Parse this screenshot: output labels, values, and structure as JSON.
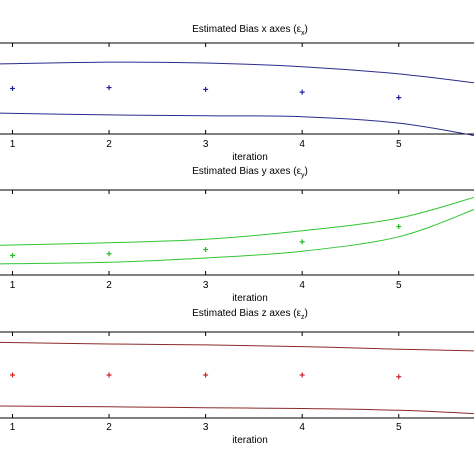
{
  "chart_data": [
    {
      "type": "line",
      "title": "Estimated Bias x axes (ε",
      "title_sub": "x",
      "title_close": ")",
      "xlabel": "iteration",
      "ylabel": "",
      "grid": false,
      "xlim": [
        0.85,
        5.8
      ],
      "ylim": [
        0,
        1
      ],
      "x_ticks": [
        1,
        2,
        3,
        4,
        5
      ],
      "colors": {
        "bounds": "#2b2b8c",
        "markers": "#1f1f9e"
      },
      "series": [
        {
          "style": "line",
          "x": [
            0.85,
            2,
            3,
            4,
            5,
            5.8
          ],
          "values": [
            0.77,
            0.79,
            0.78,
            0.74,
            0.66,
            0.56
          ]
        },
        {
          "style": "line",
          "x": [
            0.85,
            2,
            3,
            4,
            5,
            5.8
          ],
          "values": [
            0.23,
            0.21,
            0.2,
            0.19,
            0.12,
            -0.02
          ]
        },
        {
          "style": "markers",
          "x": [
            1,
            2,
            3,
            4,
            5
          ],
          "values": [
            0.5,
            0.51,
            0.49,
            0.46,
            0.4
          ]
        }
      ]
    },
    {
      "type": "line",
      "title": "Estimated Bias y axes (ε",
      "title_sub": "y",
      "title_close": ")",
      "xlabel": "iteration",
      "ylabel": "",
      "grid": false,
      "xlim": [
        0.85,
        5.8
      ],
      "ylim": [
        0,
        1
      ],
      "x_ticks": [
        1,
        2,
        3,
        4,
        5
      ],
      "colors": {
        "bounds": "#33c433",
        "markers": "#22bb22"
      },
      "series": [
        {
          "style": "line",
          "x": [
            0.85,
            2,
            3,
            4,
            5,
            5.8
          ],
          "values": [
            0.35,
            0.38,
            0.42,
            0.52,
            0.67,
            0.92
          ]
        },
        {
          "style": "line",
          "x": [
            0.85,
            2,
            3,
            4,
            5,
            5.8
          ],
          "values": [
            0.13,
            0.15,
            0.2,
            0.28,
            0.45,
            0.78
          ]
        },
        {
          "style": "markers",
          "x": [
            1,
            2,
            3,
            4,
            5
          ],
          "values": [
            0.23,
            0.25,
            0.3,
            0.39,
            0.57
          ]
        }
      ]
    },
    {
      "type": "line",
      "title": "Estimated Bias z axes (ε",
      "title_sub": "z",
      "title_close": ")",
      "xlabel": "iteration",
      "ylabel": "",
      "grid": false,
      "xlim": [
        0.85,
        5.8
      ],
      "ylim": [
        0,
        1
      ],
      "x_ticks": [
        1,
        2,
        3,
        4,
        5
      ],
      "colors": {
        "bounds": "#8c2b2b",
        "markers": "#cc2222"
      },
      "series": [
        {
          "style": "line",
          "x": [
            0.85,
            2,
            3,
            4,
            5,
            5.8
          ],
          "values": [
            0.88,
            0.86,
            0.85,
            0.83,
            0.8,
            0.78
          ]
        },
        {
          "style": "line",
          "x": [
            0.85,
            2,
            3,
            4,
            5,
            5.8
          ],
          "values": [
            0.14,
            0.13,
            0.12,
            0.11,
            0.09,
            0.05
          ]
        },
        {
          "style": "markers",
          "x": [
            1,
            2,
            3,
            4,
            5
          ],
          "values": [
            0.5,
            0.5,
            0.5,
            0.5,
            0.48
          ]
        }
      ]
    }
  ]
}
